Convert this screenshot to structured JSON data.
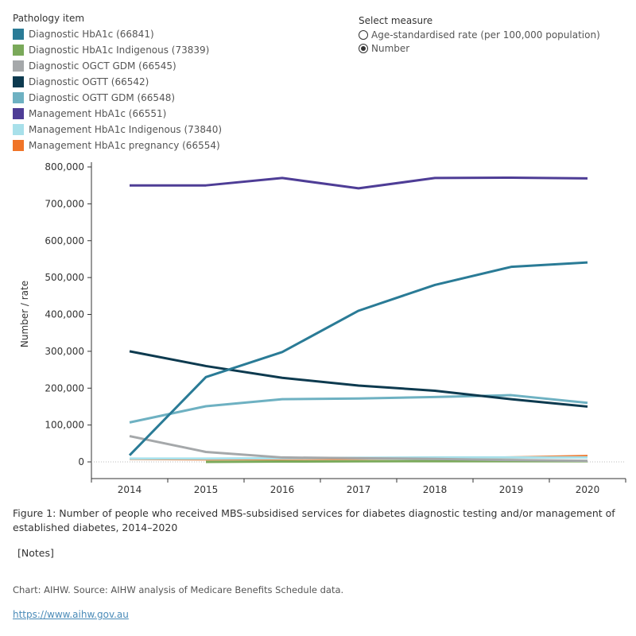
{
  "legend": {
    "title": "Pathology item"
  },
  "measure": {
    "title": "Select measure",
    "options": [
      {
        "label": "Age-standardised rate (per 100,000 population)",
        "selected": false
      },
      {
        "label": "Number",
        "selected": true
      }
    ]
  },
  "chart_data": {
    "type": "line",
    "ylabel": "Number / rate",
    "x": [
      "2014",
      "2015",
      "2016",
      "2017",
      "2018",
      "2019",
      "2020"
    ],
    "ylim": [
      0,
      800000
    ],
    "yticks": [
      "0",
      "100,000",
      "200,000",
      "300,000",
      "400,000",
      "500,000",
      "600,000",
      "700,000",
      "800,000"
    ],
    "grid": false,
    "legend_position": "top-left",
    "series": [
      {
        "name": "Diagnostic HbA1c (66841)",
        "color": "#2a7b96",
        "values": [
          18000,
          230000,
          298000,
          410000,
          480000,
          529000,
          541000
        ]
      },
      {
        "name": "Diagnostic HbA1c Indigenous (73839)",
        "color": "#7aa95a",
        "values": [
          null,
          0,
          1000,
          1500,
          2000,
          2000,
          2000
        ]
      },
      {
        "name": "Diagnostic OGCT GDM (66545)",
        "color": "#a5a8aa",
        "values": [
          70000,
          27000,
          12000,
          10000,
          8000,
          5000,
          3000
        ]
      },
      {
        "name": "Diagnostic OGTT (66542)",
        "color": "#0d3a4f",
        "values": [
          300000,
          260000,
          228000,
          207000,
          193000,
          170000,
          150000
        ]
      },
      {
        "name": "Diagnostic OGTT GDM (66548)",
        "color": "#6eb1c2",
        "values": [
          107000,
          151000,
          170000,
          172000,
          176000,
          181000,
          160000
        ]
      },
      {
        "name": "Management HbA1c (66551)",
        "color": "#4e3d96",
        "values": [
          750000,
          750000,
          770000,
          742000,
          770000,
          771000,
          769000
        ]
      },
      {
        "name": "Management HbA1c Indigenous (73840)",
        "color": "#a8e0ea",
        "values": [
          9000,
          9000,
          10000,
          11000,
          12000,
          12000,
          12000
        ]
      },
      {
        "name": "Management HbA1c pregnancy (66554)",
        "color": "#f07427",
        "values": [
          8000,
          7000,
          8000,
          9000,
          10000,
          12000,
          16000
        ]
      }
    ]
  },
  "caption": "Figure 1: Number of people who received MBS-subsidised services for diabetes diagnostic testing and/or management of established diabetes, 2014–2020",
  "notes": "[Notes]",
  "source": "Chart: AIHW.  Source: AIHW analysis of Medicare Benefits Schedule data.",
  "link": "https://www.aihw.gov.au"
}
